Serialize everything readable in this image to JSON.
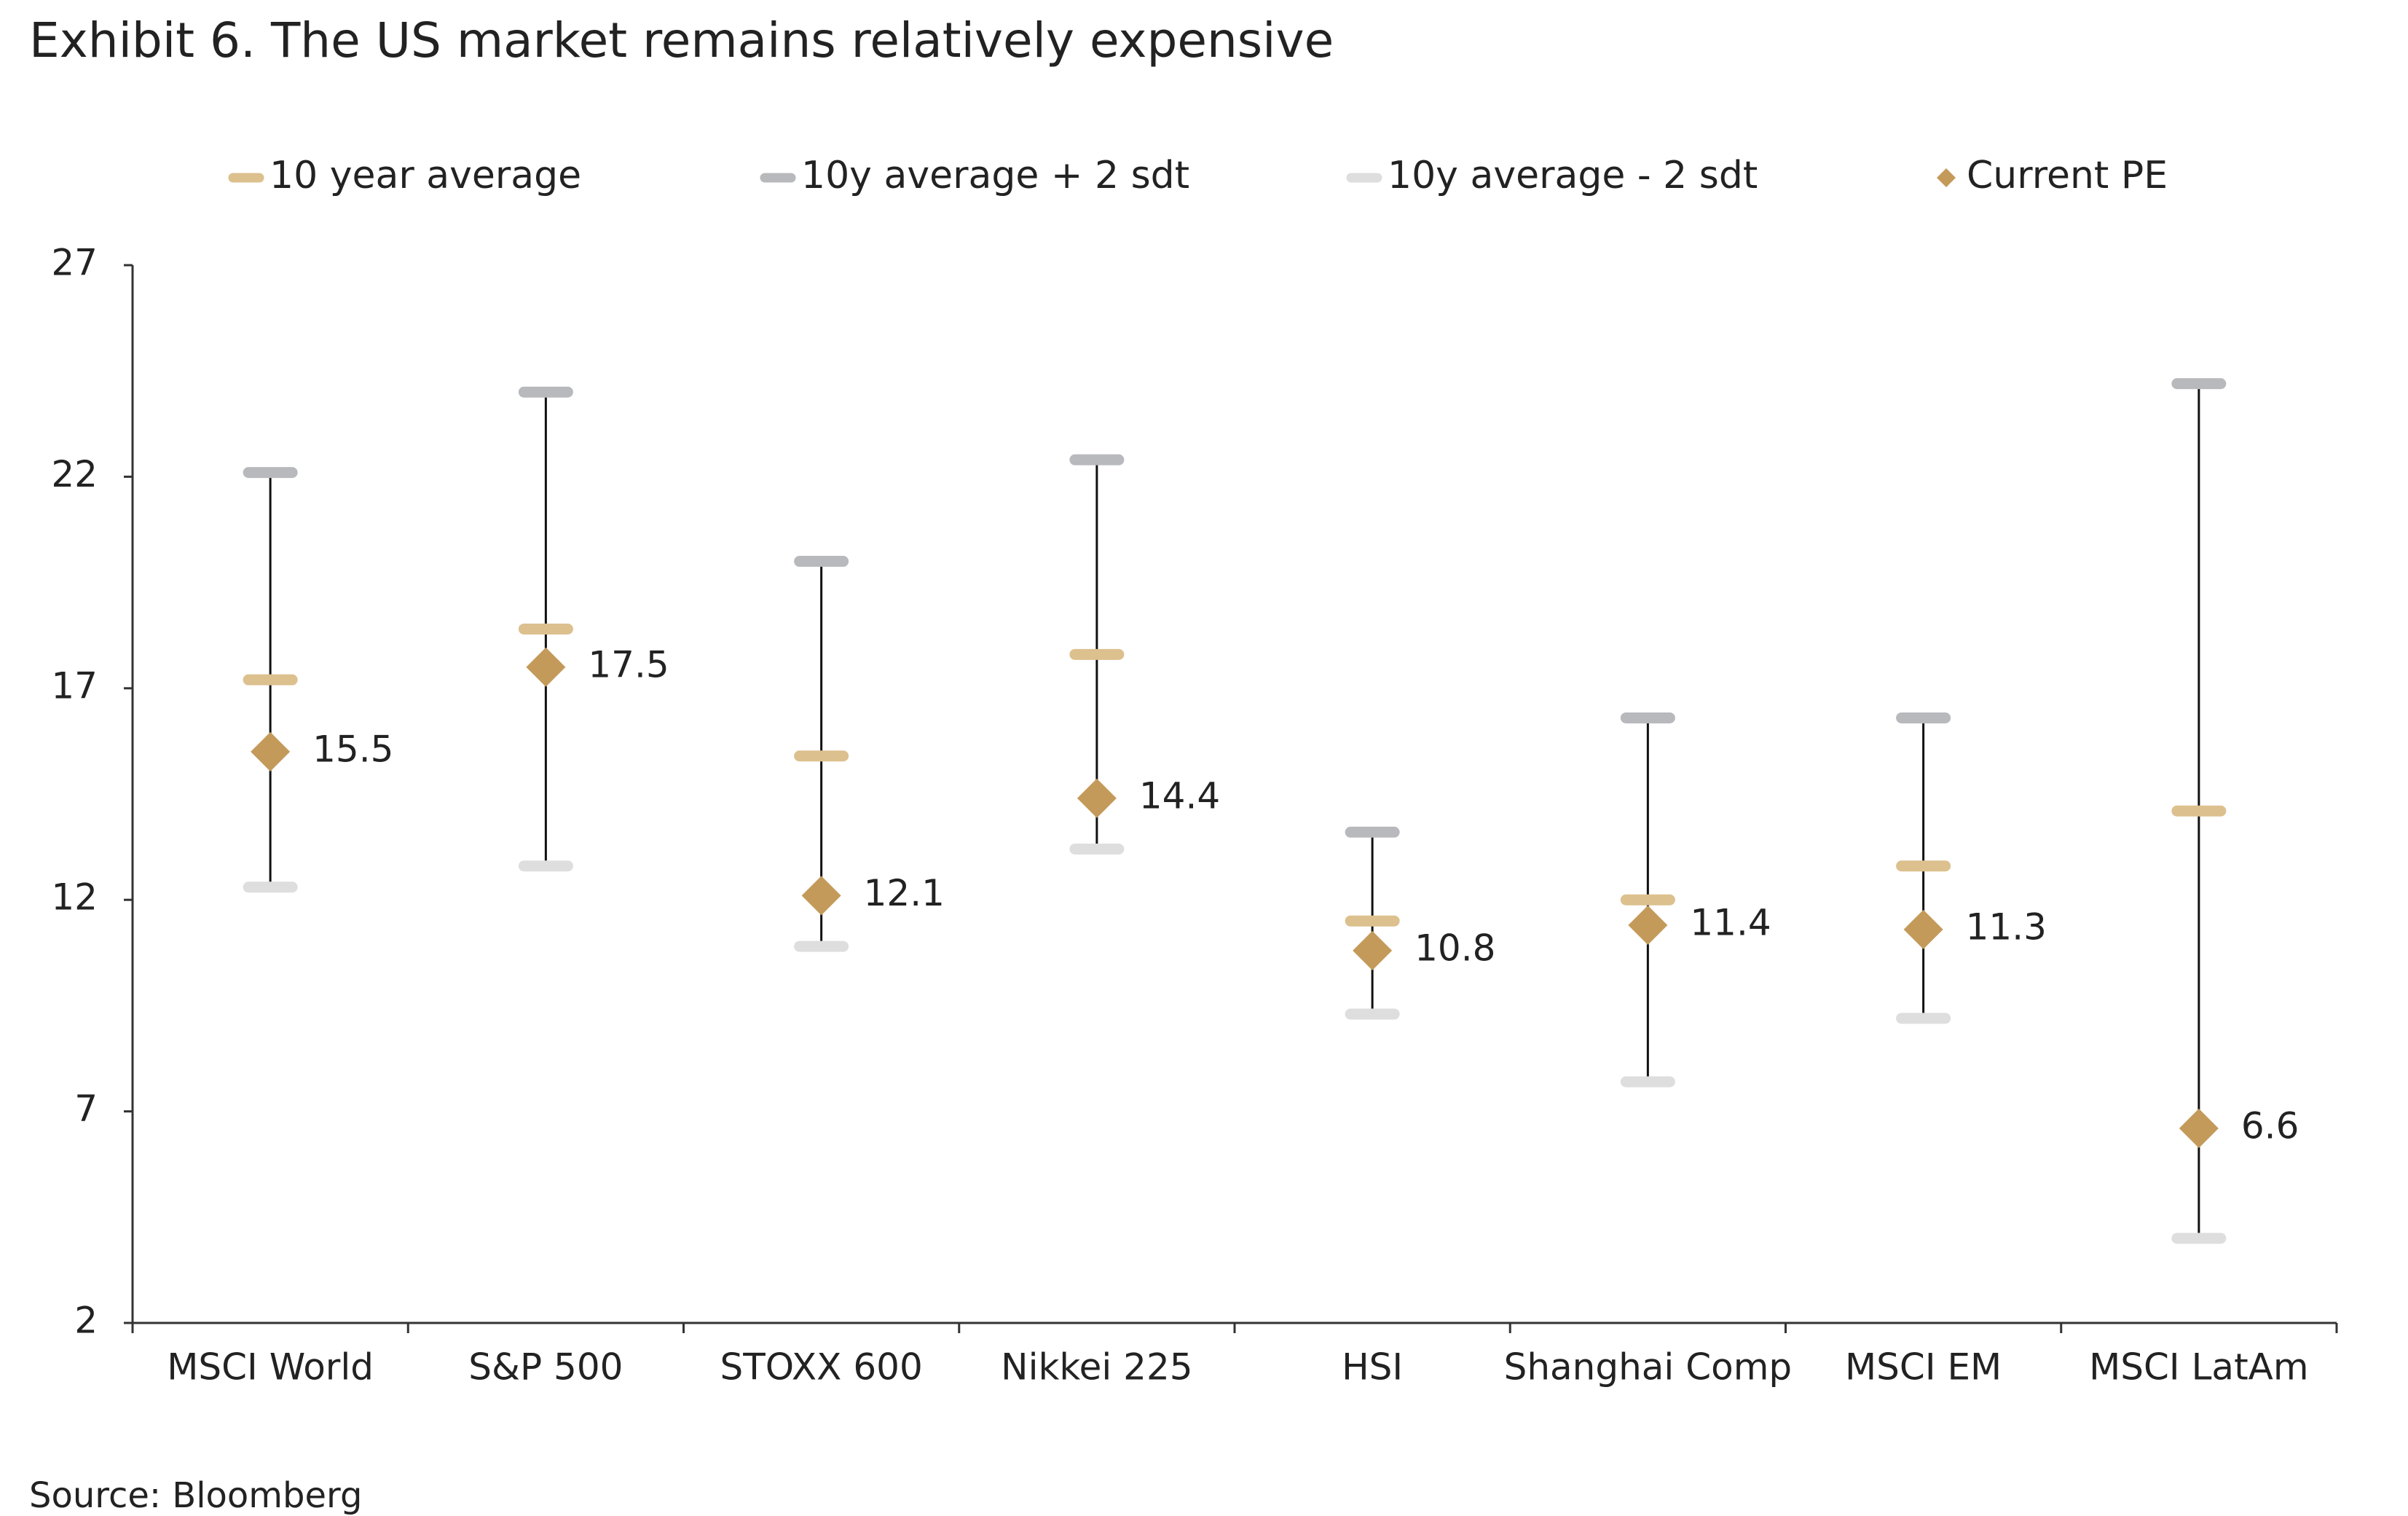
{
  "chart_data": {
    "type": "range",
    "title": "Exhibit 6. The US market remains relatively expensive",
    "source": "Source: Bloomberg",
    "categories": [
      "MSCI World",
      "S&P 500",
      "STOXX 600",
      "Nikkei 225",
      "HSI",
      "Shanghai Comp",
      "MSCI EM",
      "MSCI LatAm"
    ],
    "series": [
      {
        "name": "10 year average",
        "color": "#dcc08e",
        "marker": "dash",
        "values": [
          17.2,
          18.4,
          15.4,
          17.8,
          11.5,
          12.0,
          12.8,
          14.1
        ]
      },
      {
        "name": "10y average + 2 sdt",
        "color": "#b8b9bc",
        "marker": "dash",
        "values": [
          22.1,
          24.0,
          20.0,
          22.4,
          13.6,
          16.3,
          16.3,
          24.2
        ]
      },
      {
        "name": "10y average - 2 sdt",
        "color": "#dedede",
        "marker": "dash",
        "values": [
          12.3,
          12.8,
          10.9,
          13.2,
          9.3,
          7.7,
          9.2,
          4.0
        ]
      },
      {
        "name": "Current PE",
        "color": "#c49a5a",
        "marker": "diamond",
        "values": [
          15.5,
          17.5,
          12.1,
          14.4,
          10.8,
          11.4,
          11.3,
          6.6
        ]
      }
    ],
    "ylim": [
      2,
      27
    ],
    "yticks": [
      2,
      7,
      12,
      17,
      22,
      27
    ],
    "grid": false,
    "legend": "top"
  }
}
